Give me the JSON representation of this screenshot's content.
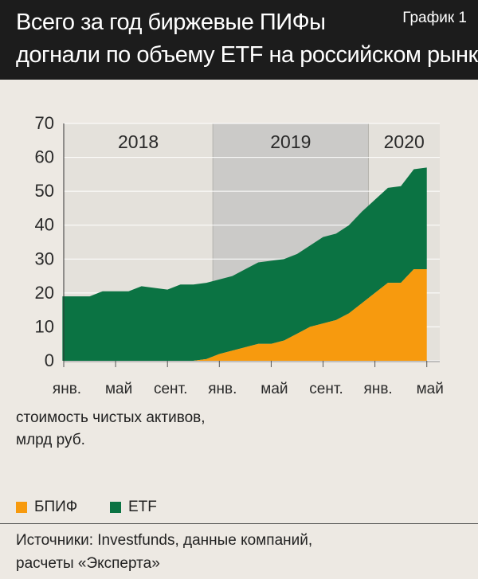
{
  "header": {
    "title_line1": "Всего за год биржевые ПИФы",
    "title_line2": "догнали по объему ETF на российском рынке",
    "figure_label": "График 1"
  },
  "chart_data": {
    "type": "area",
    "stacked": true,
    "y_ticks": [
      0,
      10,
      20,
      30,
      40,
      50,
      60,
      70
    ],
    "ylim": [
      0,
      70
    ],
    "xlim": [
      0,
      29
    ],
    "x_tick_labels": [
      {
        "x": 0,
        "label": "янв."
      },
      {
        "x": 4,
        "label": "май"
      },
      {
        "x": 8,
        "label": "сент."
      },
      {
        "x": 12,
        "label": "янв."
      },
      {
        "x": 16,
        "label": "май"
      },
      {
        "x": 20,
        "label": "сент."
      },
      {
        "x": 24,
        "label": "янв."
      },
      {
        "x": 28,
        "label": "май"
      }
    ],
    "year_bands": [
      {
        "label": "2018",
        "from": 0,
        "to": 11.5,
        "shade": "#e4e1db"
      },
      {
        "label": "2019",
        "from": 11.5,
        "to": 23.5,
        "shade": "#cbcac8"
      },
      {
        "label": "2020",
        "from": 23.5,
        "to": 29,
        "shade": "#e4e1db"
      }
    ],
    "x": [
      -0.1,
      0,
      1,
      2,
      3,
      4,
      5,
      6,
      7,
      8,
      9,
      10,
      11,
      12,
      13,
      14,
      15,
      16,
      17,
      18,
      19,
      20,
      21,
      22,
      23,
      24,
      25,
      26,
      27,
      28
    ],
    "series": [
      {
        "name": "БПИФ",
        "color": "#f79a0e",
        "values": [
          0,
          0,
          0,
          0,
          0,
          0,
          0,
          0,
          0,
          0,
          0,
          0,
          0.5,
          2,
          3,
          4,
          5,
          5,
          6,
          8,
          10,
          11,
          12,
          14,
          17,
          20,
          23,
          23,
          27,
          27
        ]
      },
      {
        "name": "ETF",
        "color": "#0b7343",
        "values": [
          19,
          19,
          19,
          19,
          20.5,
          20.5,
          20.5,
          22,
          21.5,
          21,
          22.5,
          22.5,
          22.5,
          22,
          22,
          23,
          24,
          24.5,
          24,
          23.5,
          24,
          25.5,
          25.5,
          26,
          27,
          27.5,
          28,
          28.5,
          29.5,
          30
        ]
      }
    ],
    "ylabel_line1": "стоимость чистых активов,",
    "ylabel_line2": "млрд руб.",
    "legend_position": "bottom-left"
  },
  "footer": {
    "source_line1": "Источники: Investfunds, данные компаний,",
    "source_line2": "расчеты «Эксперта»"
  }
}
